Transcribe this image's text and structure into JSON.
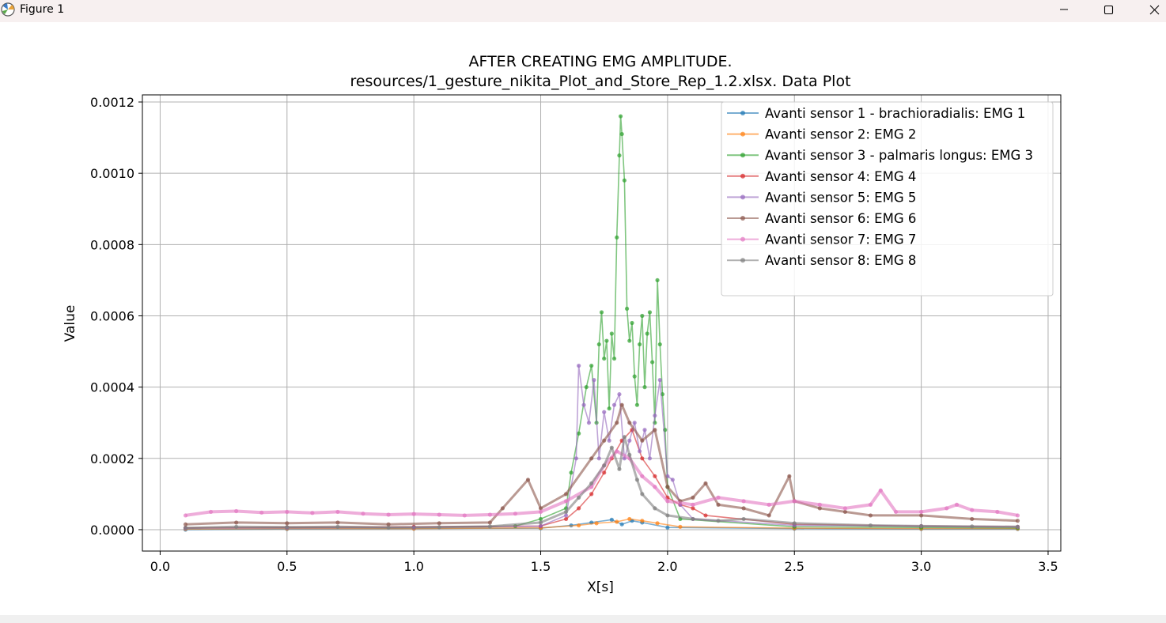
{
  "window": {
    "title": "Figure 1",
    "app_icon": "matplotlib-figure-icon",
    "controls": [
      "minimize-icon",
      "maximize-icon",
      "close-icon"
    ]
  },
  "chart_data": {
    "type": "line",
    "title": "AFTER CREATING EMG AMPLITUDE.",
    "subtitle": "resources/1_gesture_nikita_Plot_and_Store_Rep_1.2.xlsx. Data Plot",
    "xlabel": "X[s]",
    "ylabel": "Value",
    "xlim": [
      -0.07,
      3.55
    ],
    "ylim": [
      -6e-05,
      0.00122
    ],
    "xticks": [
      0.0,
      0.5,
      1.0,
      1.5,
      2.0,
      2.5,
      3.0,
      3.5
    ],
    "xtick_labels": [
      "0.0",
      "0.5",
      "1.0",
      "1.5",
      "2.0",
      "2.5",
      "3.0",
      "3.5"
    ],
    "yticks": [
      0.0,
      0.0002,
      0.0004,
      0.0006,
      0.0008,
      0.001,
      0.0012
    ],
    "ytick_labels": [
      "0.0000",
      "0.0002",
      "0.0004",
      "0.0006",
      "0.0008",
      "0.0010",
      "0.0012"
    ],
    "grid": true,
    "legend_position": "upper right",
    "marker": "o",
    "series": [
      {
        "name": "Avanti sensor 1 - brachioradialis: EMG 1",
        "color": "#1f77b4",
        "x": [
          0.1,
          0.5,
          1.0,
          1.5,
          1.62,
          1.7,
          1.78,
          1.82,
          1.86,
          1.9,
          2.0,
          2.5,
          3.0,
          3.38
        ],
        "y": [
          0.0,
          2e-06,
          3e-06,
          4e-06,
          1.2e-05,
          2e-05,
          2.8e-05,
          1.5e-05,
          2.5e-05,
          2e-05,
          6e-06,
          3e-06,
          2e-06,
          2e-06
        ]
      },
      {
        "name": "Avanti sensor 2: EMG 2",
        "color": "#ff7f0e",
        "x": [
          0.1,
          0.5,
          1.0,
          1.5,
          1.65,
          1.72,
          1.8,
          1.85,
          1.9,
          1.96,
          2.05,
          2.5,
          3.0,
          3.38
        ],
        "y": [
          2e-06,
          3e-06,
          3e-06,
          5e-06,
          1.2e-05,
          1.8e-05,
          2.2e-05,
          3e-05,
          2.5e-05,
          1.8e-05,
          8e-06,
          4e-06,
          3e-06,
          3e-06
        ]
      },
      {
        "name": "Avanti sensor 3 - palmaris longus: EMG 3",
        "color": "#2ca02c",
        "x": [
          0.1,
          0.5,
          1.0,
          1.4,
          1.5,
          1.6,
          1.62,
          1.65,
          1.68,
          1.7,
          1.72,
          1.73,
          1.74,
          1.75,
          1.76,
          1.77,
          1.78,
          1.79,
          1.8,
          1.81,
          1.815,
          1.82,
          1.83,
          1.84,
          1.85,
          1.86,
          1.87,
          1.88,
          1.89,
          1.9,
          1.91,
          1.92,
          1.93,
          1.94,
          1.95,
          1.96,
          1.97,
          1.98,
          1.99,
          2.0,
          2.05,
          2.5,
          3.0,
          3.38
        ],
        "y": [
          5e-06,
          6e-06,
          7e-06,
          1e-05,
          3e-05,
          6e-05,
          0.00016,
          0.00027,
          0.0004,
          0.00046,
          0.0003,
          0.00052,
          0.00061,
          0.00048,
          0.00053,
          0.00034,
          0.00055,
          0.00048,
          0.00082,
          0.00105,
          0.00116,
          0.00111,
          0.00098,
          0.00062,
          0.00053,
          0.00058,
          0.00043,
          0.00035,
          0.00052,
          0.0006,
          0.0004,
          0.00055,
          0.00061,
          0.00047,
          0.0003,
          0.0007,
          0.00052,
          0.00038,
          0.00028,
          0.00012,
          3e-05,
          8e-06,
          6e-06,
          5e-06
        ]
      },
      {
        "name": "Avanti sensor 4: EMG 4",
        "color": "#d62728",
        "x": [
          0.1,
          0.5,
          1.0,
          1.5,
          1.6,
          1.65,
          1.7,
          1.75,
          1.78,
          1.82,
          1.86,
          1.9,
          1.95,
          2.0,
          2.05,
          2.1,
          2.15,
          2.5,
          3.0,
          3.38
        ],
        "y": [
          5e-06,
          7e-06,
          8e-06,
          1e-05,
          3e-05,
          6e-05,
          0.0001,
          0.00016,
          0.0002,
          0.00025,
          0.00028,
          0.0002,
          0.00015,
          9e-05,
          7e-05,
          6e-05,
          4e-05,
          1.5e-05,
          1e-05,
          8e-06
        ]
      },
      {
        "name": "Avanti sensor 5: EMG 5",
        "color": "#9467bd",
        "x": [
          0.1,
          0.5,
          1.0,
          1.5,
          1.6,
          1.64,
          1.65,
          1.67,
          1.69,
          1.71,
          1.73,
          1.75,
          1.77,
          1.79,
          1.81,
          1.83,
          1.85,
          1.87,
          1.89,
          1.91,
          1.93,
          1.95,
          1.97,
          2.0,
          2.02,
          2.05,
          2.1,
          2.5,
          3.0,
          3.38
        ],
        "y": [
          4e-06,
          5e-06,
          6e-06,
          1e-05,
          4e-05,
          0.0002,
          0.00046,
          0.00035,
          0.0003,
          0.00042,
          0.0002,
          0.00033,
          0.00025,
          0.00035,
          0.00038,
          0.0002,
          0.00025,
          0.0003,
          0.00022,
          0.00028,
          0.0002,
          0.00032,
          0.00042,
          0.00015,
          0.00014,
          7e-05,
          3e-05,
          1.2e-05,
          1e-05,
          8e-06
        ]
      },
      {
        "name": "Avanti sensor 6: EMG 6",
        "color": "#8c564b",
        "x": [
          0.1,
          0.3,
          0.5,
          0.7,
          0.9,
          1.1,
          1.3,
          1.35,
          1.45,
          1.5,
          1.6,
          1.7,
          1.75,
          1.8,
          1.82,
          1.85,
          1.9,
          1.95,
          2.0,
          2.05,
          2.1,
          2.15,
          2.2,
          2.3,
          2.4,
          2.48,
          2.5,
          2.6,
          2.7,
          2.8,
          3.0,
          3.2,
          3.38
        ],
        "y": [
          1.5e-05,
          2e-05,
          1.8e-05,
          2e-05,
          1.5e-05,
          1.8e-05,
          2e-05,
          6e-05,
          0.00014,
          6e-05,
          0.0001,
          0.0002,
          0.00025,
          0.0003,
          0.00035,
          0.0003,
          0.00025,
          0.00028,
          0.00012,
          8e-05,
          9e-05,
          0.00013,
          7e-05,
          6e-05,
          4e-05,
          0.00015,
          8e-05,
          6e-05,
          5e-05,
          4e-05,
          4e-05,
          3e-05,
          2.5e-05
        ]
      },
      {
        "name": "Avanti sensor 7: EMG 7",
        "color": "#e377c2",
        "x": [
          0.1,
          0.2,
          0.3,
          0.4,
          0.5,
          0.6,
          0.7,
          0.8,
          0.9,
          1.0,
          1.1,
          1.2,
          1.3,
          1.4,
          1.5,
          1.6,
          1.7,
          1.75,
          1.8,
          1.85,
          1.9,
          1.95,
          2.0,
          2.1,
          2.2,
          2.3,
          2.4,
          2.5,
          2.6,
          2.7,
          2.8,
          2.84,
          2.9,
          3.0,
          3.1,
          3.14,
          3.2,
          3.3,
          3.38
        ],
        "y": [
          4e-05,
          5e-05,
          5.2e-05,
          4.8e-05,
          5e-05,
          4.7e-05,
          5e-05,
          4.5e-05,
          4.2e-05,
          4.4e-05,
          4.2e-05,
          4e-05,
          4.2e-05,
          4.5e-05,
          5e-05,
          8e-05,
          0.00012,
          0.00018,
          0.00022,
          0.0002,
          0.00015,
          0.00012,
          8e-05,
          7e-05,
          9e-05,
          8e-05,
          7e-05,
          8e-05,
          7e-05,
          6e-05,
          7e-05,
          0.00011,
          5e-05,
          5e-05,
          6e-05,
          7e-05,
          5.5e-05,
          5e-05,
          4e-05
        ]
      },
      {
        "name": "Avanti sensor 8: EMG 8",
        "color": "#7f7f7f",
        "x": [
          0.1,
          0.3,
          0.5,
          0.7,
          0.9,
          1.1,
          1.3,
          1.5,
          1.6,
          1.65,
          1.7,
          1.75,
          1.78,
          1.81,
          1.83,
          1.85,
          1.88,
          1.9,
          1.95,
          2.0,
          2.1,
          2.2,
          2.3,
          2.5,
          2.8,
          3.0,
          3.2,
          3.38
        ],
        "y": [
          5e-06,
          8e-06,
          7e-06,
          8e-06,
          6e-06,
          7e-06,
          9e-06,
          2e-05,
          5e-05,
          9e-05,
          0.00013,
          0.00018,
          0.00023,
          0.00017,
          0.00026,
          0.00021,
          0.00014,
          0.0001,
          6e-05,
          4e-05,
          3e-05,
          2.5e-05,
          3e-05,
          1.8e-05,
          1.2e-05,
          1e-05,
          9e-06,
          8e-06
        ]
      }
    ]
  }
}
